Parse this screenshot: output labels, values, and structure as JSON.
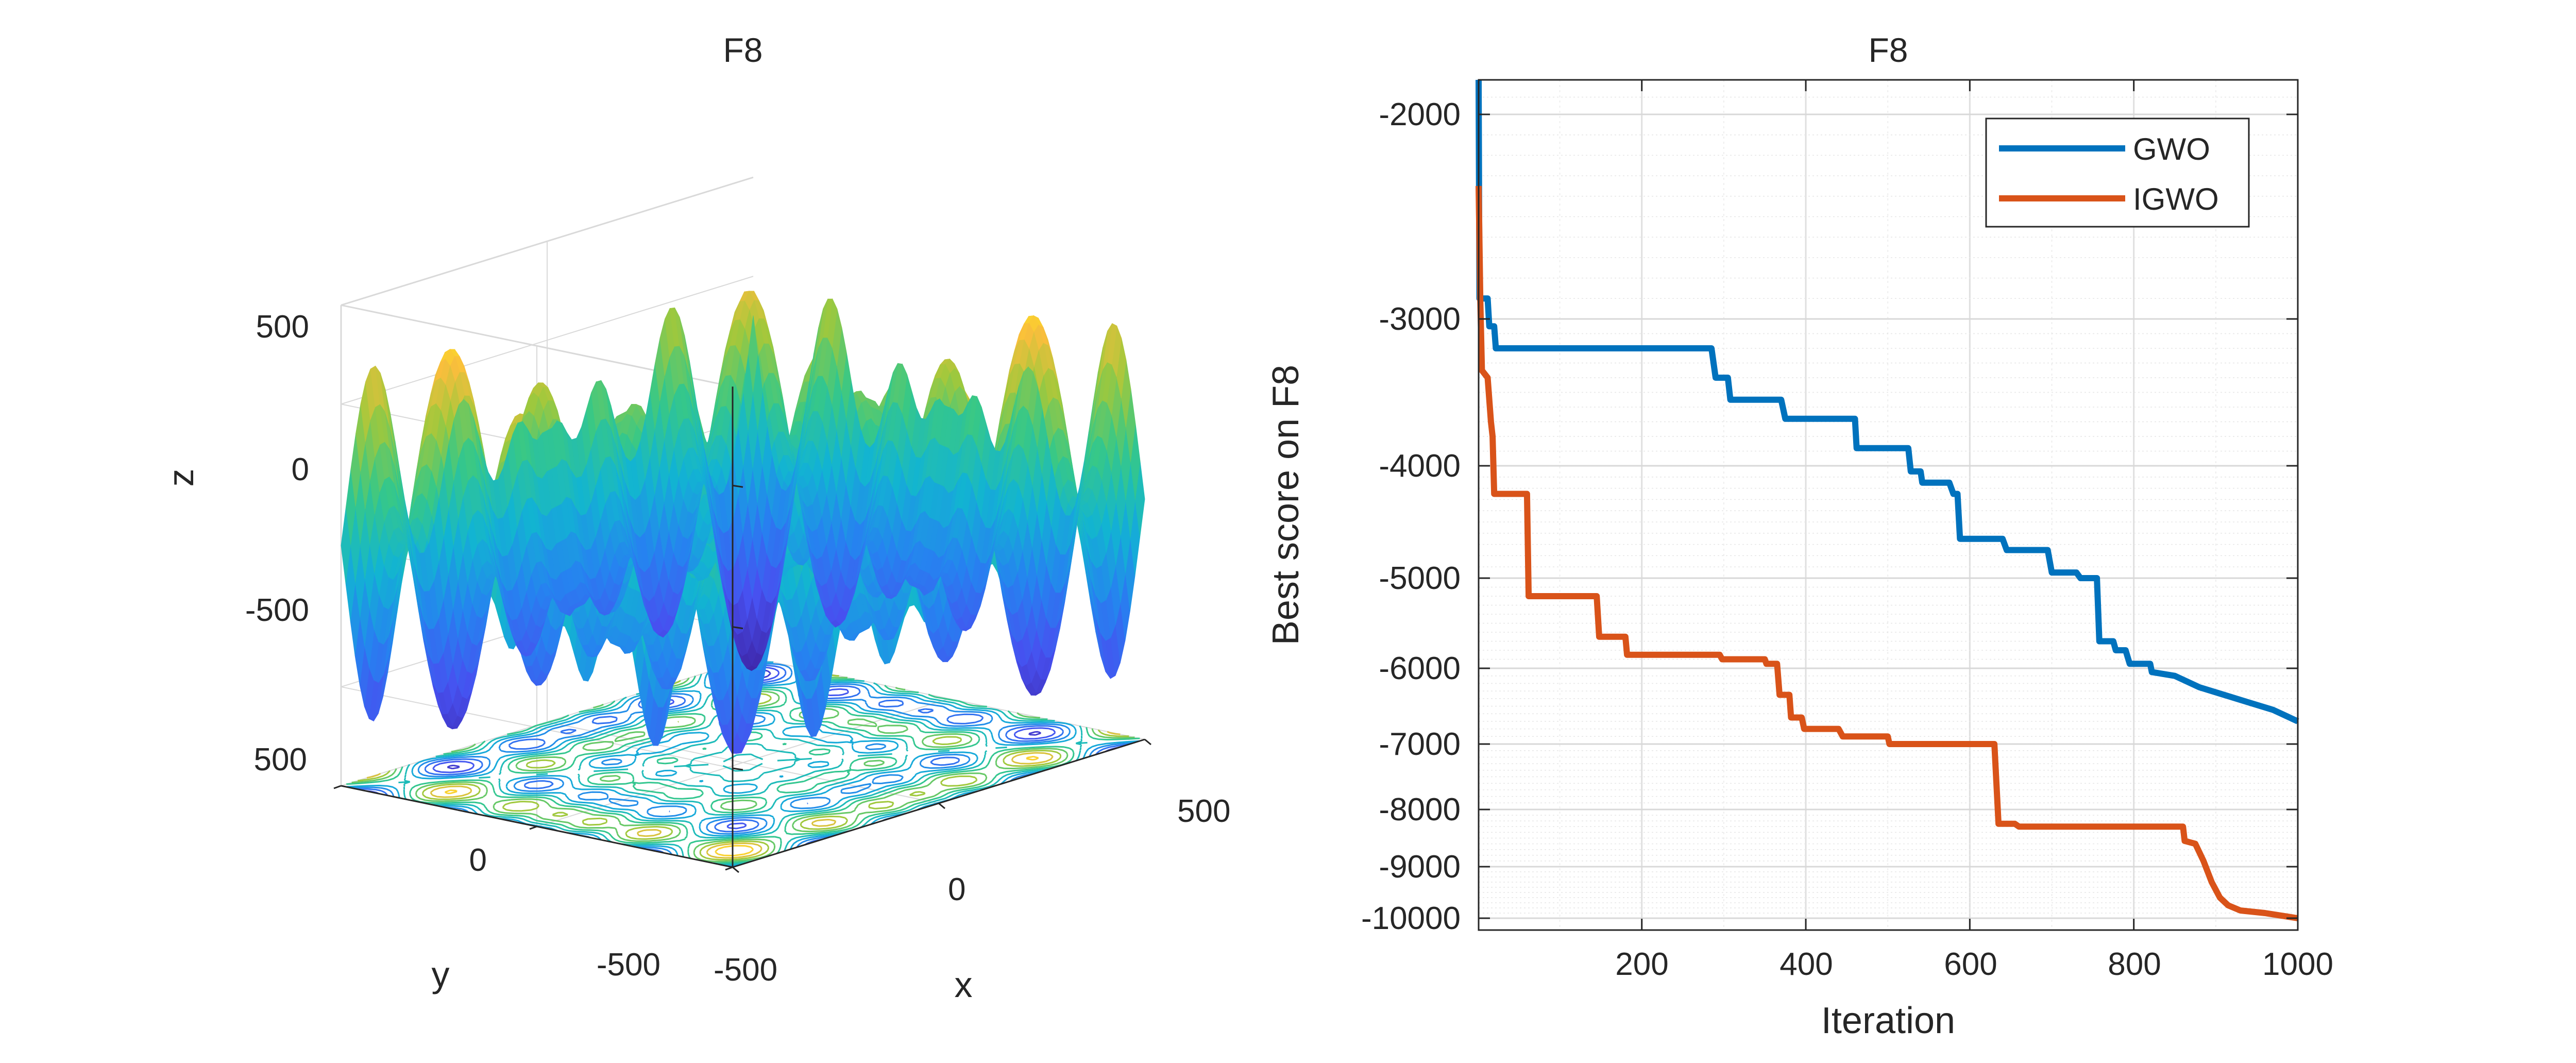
{
  "chart_data": [
    {
      "type": "surface3d",
      "title": "F8",
      "xlabel": "x",
      "ylabel": "y",
      "zlabel": "z",
      "xlim": [
        -500,
        500
      ],
      "ylim": [
        -500,
        500
      ],
      "zlim": [
        -850,
        850
      ],
      "x_ticks": [
        "-500",
        "0",
        "500"
      ],
      "y_ticks": [
        "-500",
        "0",
        "500"
      ],
      "z_ticks": [
        "-500",
        "0",
        "500"
      ],
      "function": "-x*sin(sqrt(|x|)) - y*sin(sqrt(|y|))",
      "has_contour_projection": true,
      "colormap": "parula"
    },
    {
      "type": "line",
      "title": "F8",
      "xlabel": "Iteration",
      "ylabel": "Best score on F8",
      "xlim": [
        1,
        1000
      ],
      "ylim": [
        -10000,
        -1800
      ],
      "y_scale": "symlog-display",
      "x_ticks": [
        "200",
        "400",
        "600",
        "800",
        "1000"
      ],
      "y_ticks": [
        "-2000",
        "-3000",
        "-4000",
        "-5000",
        "-6000",
        "-7000",
        "-8000",
        "-9000",
        "-10000"
      ],
      "grid": true,
      "legend_position": "top-right",
      "series": [
        {
          "name": "GWO",
          "color": "#0072BD",
          "points": [
            [
              1,
              -1800
            ],
            [
              2,
              -2900
            ],
            [
              12,
              -2900
            ],
            [
              14,
              -3050
            ],
            [
              20,
              -3050
            ],
            [
              22,
              -3200
            ],
            [
              285,
              -3200
            ],
            [
              290,
              -3400
            ],
            [
              305,
              -3400
            ],
            [
              308,
              -3550
            ],
            [
              370,
              -3550
            ],
            [
              375,
              -3680
            ],
            [
              460,
              -3680
            ],
            [
              462,
              -3880
            ],
            [
              525,
              -3880
            ],
            [
              528,
              -4050
            ],
            [
              540,
              -4050
            ],
            [
              542,
              -4150
            ],
            [
              575,
              -4150
            ],
            [
              580,
              -4250
            ],
            [
              585,
              -4250
            ],
            [
              588,
              -4650
            ],
            [
              640,
              -4650
            ],
            [
              645,
              -4750
            ],
            [
              695,
              -4750
            ],
            [
              700,
              -4950
            ],
            [
              730,
              -4950
            ],
            [
              735,
              -5000
            ],
            [
              755,
              -5000
            ],
            [
              758,
              -5700
            ],
            [
              775,
              -5700
            ],
            [
              778,
              -5800
            ],
            [
              790,
              -5800
            ],
            [
              795,
              -5950
            ],
            [
              820,
              -5950
            ],
            [
              822,
              -6050
            ],
            [
              850,
              -6100
            ],
            [
              880,
              -6250
            ],
            [
              910,
              -6350
            ],
            [
              940,
              -6450
            ],
            [
              970,
              -6550
            ],
            [
              1000,
              -6700
            ]
          ]
        },
        {
          "name": "IGWO",
          "color": "#D95319",
          "points": [
            [
              1,
              -2350
            ],
            [
              3,
              -2900
            ],
            [
              5,
              -3350
            ],
            [
              12,
              -3400
            ],
            [
              16,
              -3700
            ],
            [
              18,
              -3800
            ],
            [
              20,
              -4250
            ],
            [
              60,
              -4250
            ],
            [
              62,
              -5200
            ],
            [
              145,
              -5200
            ],
            [
              148,
              -5650
            ],
            [
              180,
              -5650
            ],
            [
              182,
              -5850
            ],
            [
              295,
              -5850
            ],
            [
              298,
              -5900
            ],
            [
              350,
              -5900
            ],
            [
              352,
              -5950
            ],
            [
              365,
              -5950
            ],
            [
              368,
              -6350
            ],
            [
              380,
              -6350
            ],
            [
              382,
              -6650
            ],
            [
              395,
              -6650
            ],
            [
              398,
              -6800
            ],
            [
              440,
              -6800
            ],
            [
              445,
              -6900
            ],
            [
              500,
              -6900
            ],
            [
              502,
              -7000
            ],
            [
              630,
              -7000
            ],
            [
              635,
              -8250
            ],
            [
              655,
              -8250
            ],
            [
              660,
              -8300
            ],
            [
              860,
              -8300
            ],
            [
              862,
              -8550
            ],
            [
              875,
              -8600
            ],
            [
              885,
              -8900
            ],
            [
              895,
              -9300
            ],
            [
              905,
              -9600
            ],
            [
              915,
              -9750
            ],
            [
              930,
              -9850
            ],
            [
              960,
              -9900
            ],
            [
              1000,
              -10000
            ]
          ]
        }
      ]
    }
  ]
}
